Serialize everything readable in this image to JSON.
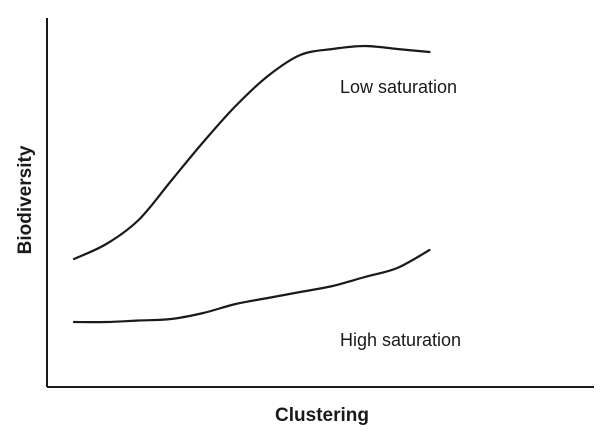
{
  "chart_data": {
    "type": "line",
    "title": "",
    "xlabel": "Clustering",
    "ylabel": "Biodiversity",
    "xlim": [
      0,
      100
    ],
    "ylim": [
      0,
      100
    ],
    "grid": false,
    "ticks": false,
    "legend": "none",
    "line_color": "#1a1a1a",
    "series": [
      {
        "name": "Low saturation",
        "x": [
          0,
          8,
          16,
          24,
          32,
          40,
          48,
          56,
          64,
          72,
          80,
          88
        ],
        "y": [
          31,
          36,
          44,
          57,
          70,
          82,
          92,
          99,
          101,
          102,
          101,
          100
        ]
      },
      {
        "name": "High saturation",
        "x": [
          0,
          8,
          16,
          24,
          32,
          40,
          48,
          56,
          64,
          72,
          80,
          88
        ],
        "y": [
          10,
          10,
          10.5,
          11,
          13,
          16,
          18,
          20,
          22,
          25,
          28,
          34
        ]
      }
    ]
  }
}
